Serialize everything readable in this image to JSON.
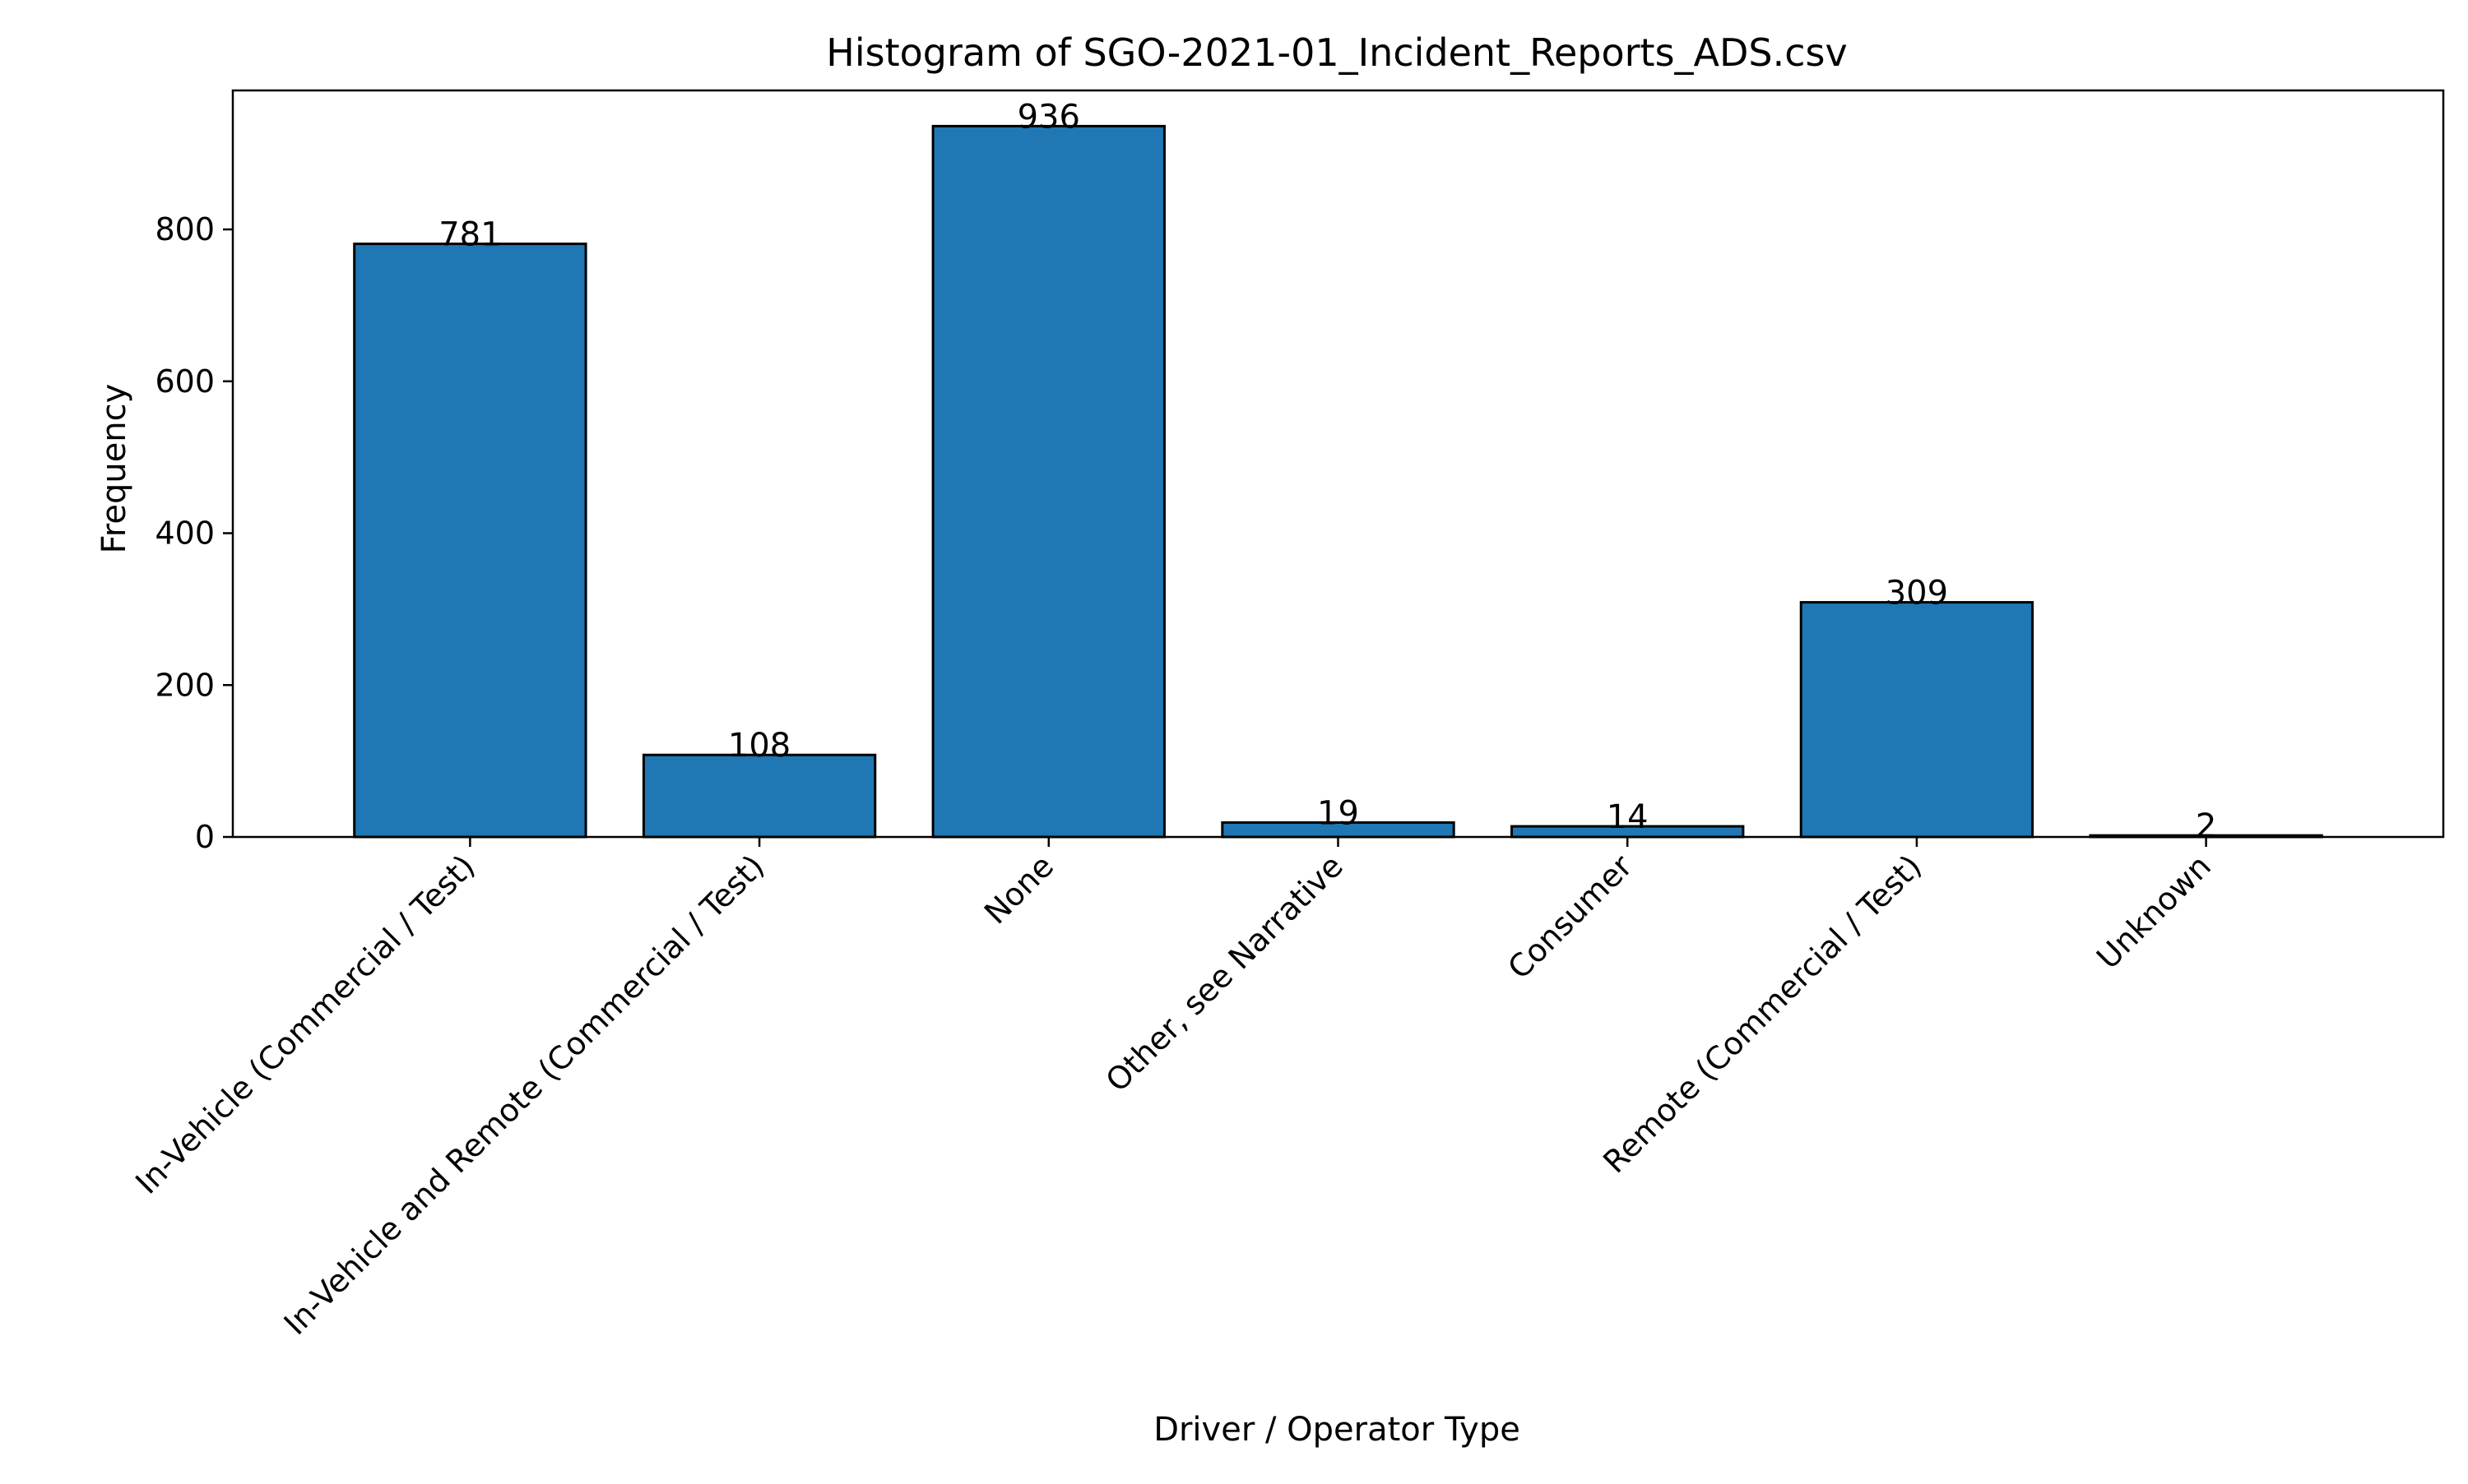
{
  "chart_data": {
    "type": "bar",
    "title": "Histogram of SGO-2021-01_Incident_Reports_ADS.csv",
    "xlabel": "Driver / Operator Type",
    "ylabel": "Frequency",
    "categories": [
      "In-Vehicle (Commercial / Test)",
      "In-Vehicle and Remote (Commercial / Test)",
      "None",
      "Other, see Narrative",
      "Consumer",
      "Remote (Commercial / Test)",
      "Unknown"
    ],
    "values": [
      781,
      108,
      936,
      19,
      14,
      309,
      2
    ],
    "data_labels": [
      "781",
      "108",
      "936",
      "19",
      "14",
      "309",
      "2"
    ],
    "ylim": [
      0,
      983
    ],
    "yticks": [
      0,
      200,
      400,
      600,
      800
    ],
    "ytick_labels": [
      "0",
      "200",
      "400",
      "600",
      "800"
    ],
    "grid": false,
    "legend": "none",
    "colors": {
      "bar_fill": "#1f77b4",
      "bar_edge": "#000000"
    }
  }
}
